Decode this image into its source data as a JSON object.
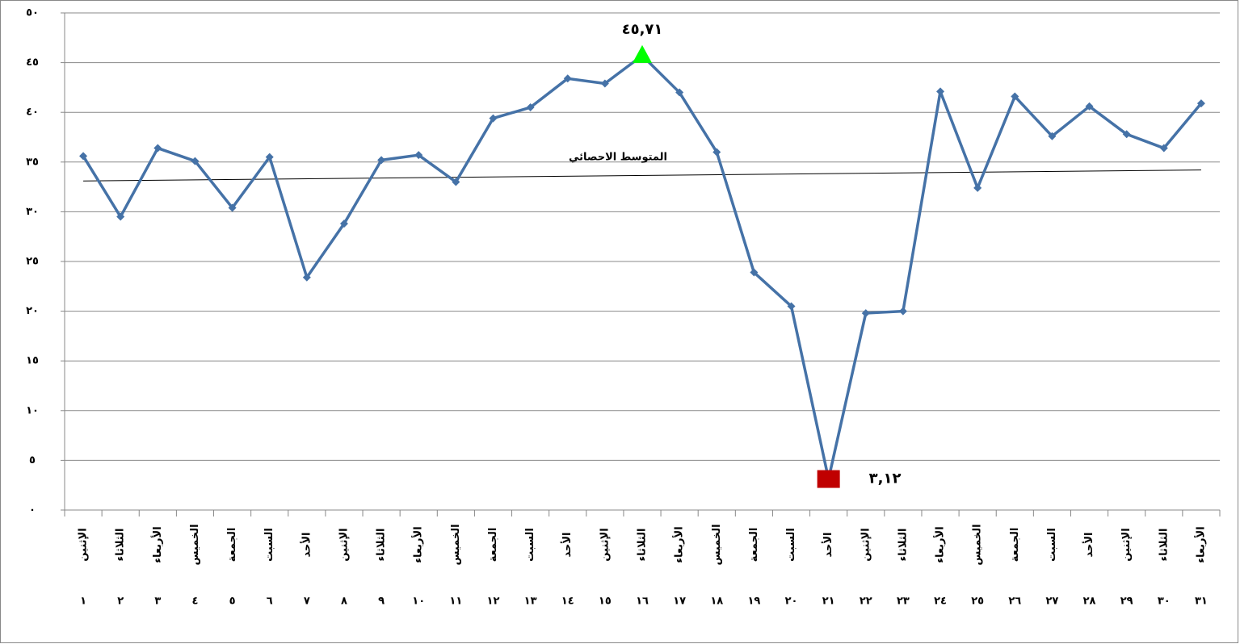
{
  "chart_data": {
    "type": "line",
    "color": "#4572a7",
    "grid": true,
    "ylim": [
      0,
      50
    ],
    "yticks": [
      {
        "value": 0,
        "label": "٠"
      },
      {
        "value": 5,
        "label": "٥"
      },
      {
        "value": 10,
        "label": "١٠"
      },
      {
        "value": 15,
        "label": "١٥"
      },
      {
        "value": 20,
        "label": "٢٠"
      },
      {
        "value": 25,
        "label": "٢٥"
      },
      {
        "value": 30,
        "label": "٣٠"
      },
      {
        "value": 35,
        "label": "٣٥"
      },
      {
        "value": 40,
        "label": "٤٠"
      },
      {
        "value": 45,
        "label": "٤٥"
      },
      {
        "value": 50,
        "label": "٥٠"
      }
    ],
    "categories": [
      "الإثنين",
      "الثلاثاء",
      "الأربعاء",
      "الخميس",
      "الجمعة",
      "السبت",
      "الأحد",
      "الإثنين",
      "الثلاثاء",
      "الأربعاء",
      "الخميس",
      "الجمعة",
      "السبت",
      "الأحد",
      "الإثنين",
      "الثلاثاء",
      "الأربعاء",
      "الخميس",
      "الجمعة",
      "السبت",
      "الأحد",
      "الإثنين",
      "الثلاثاء",
      "الأربعاء",
      "الخميس",
      "الجمعة",
      "السبت",
      "الأحد",
      "الإثنين",
      "الثلاثاء",
      "الأربعاء"
    ],
    "day_numbers": [
      "١",
      "٢",
      "٣",
      "٤",
      "٥",
      "٦",
      "٧",
      "٨",
      "٩",
      "١٠",
      "١١",
      "١٢",
      "١٣",
      "١٤",
      "١٥",
      "١٦",
      "١٧",
      "١٨",
      "١٩",
      "٢٠",
      "٢١",
      "٢٢",
      "٢٣",
      "٢٤",
      "٢٥",
      "٢٦",
      "٢٧",
      "٢٨",
      "٢٩",
      "٣٠",
      "٣١"
    ],
    "values": [
      35.6,
      29.5,
      36.4,
      35.1,
      30.4,
      35.5,
      23.4,
      28.8,
      35.2,
      35.7,
      33.0,
      39.4,
      40.5,
      43.4,
      42.9,
      45.71,
      42.0,
      36.0,
      23.9,
      20.5,
      3.12,
      19.8,
      20.0,
      42.1,
      32.4,
      41.6,
      37.6,
      40.6,
      37.8,
      36.4,
      40.9
    ],
    "value_labels": [
      null,
      null,
      null,
      null,
      null,
      null,
      null,
      null,
      null,
      null,
      null,
      null,
      null,
      null,
      null,
      "٤٥,٧١",
      null,
      null,
      null,
      null,
      "٣,١٢",
      null,
      null,
      null,
      null,
      null,
      null,
      null,
      null,
      null,
      null
    ],
    "markers": [
      {
        "index": 15,
        "shape": "triangle",
        "color": "#00ff00"
      },
      {
        "index": 20,
        "shape": "square",
        "color": "#c00000"
      }
    ],
    "trend": {
      "label": "المتوسط الاحصائي",
      "start": 33.1,
      "end": 34.2,
      "color": "#000000"
    }
  }
}
